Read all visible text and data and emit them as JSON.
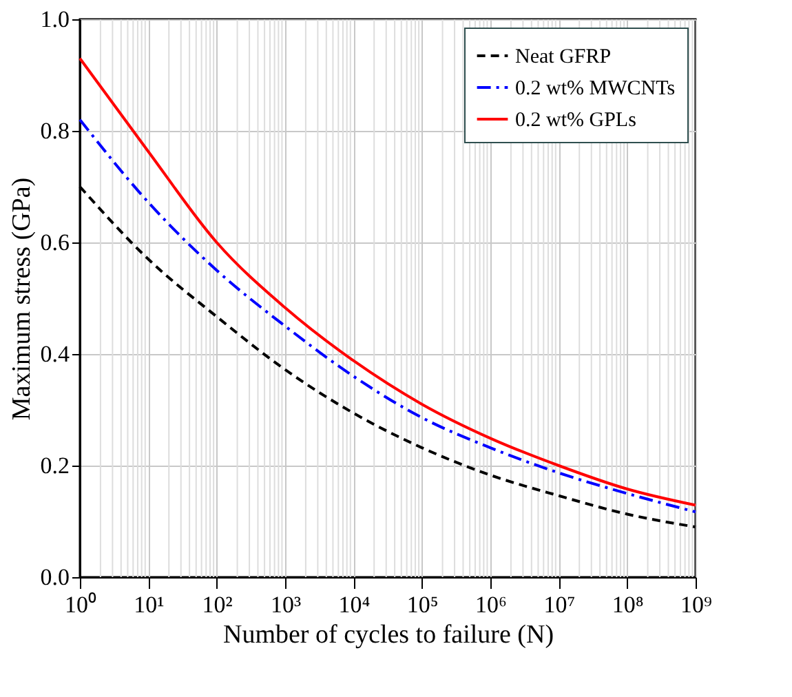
{
  "chart_data": {
    "type": "line",
    "xlabel": "Number of cycles to failure (N)",
    "ylabel": "Maximum stress (GPa)",
    "x": [
      1,
      10,
      100,
      1000,
      10000,
      100000,
      1000000,
      10000000,
      100000000,
      1000000000
    ],
    "series": [
      {
        "name": "Neat GFRP",
        "color": "#000000",
        "line_style": "dashed",
        "values": [
          0.7,
          0.57,
          0.467,
          0.372,
          0.294,
          0.232,
          0.183,
          0.146,
          0.113,
          0.09
        ]
      },
      {
        "name": "0.2 wt% MWCNTs",
        "color": "#0000ff",
        "line_style": "dashdot",
        "values": [
          0.82,
          0.672,
          0.55,
          0.45,
          0.36,
          0.286,
          0.232,
          0.187,
          0.15,
          0.117
        ]
      },
      {
        "name": "0.2 wt% GPLs",
        "color": "#ff0000",
        "line_style": "solid",
        "values": [
          0.93,
          0.763,
          0.6,
          0.483,
          0.388,
          0.31,
          0.249,
          0.2,
          0.158,
          0.129
        ]
      }
    ],
    "log": "x",
    "xlim": [
      1,
      1000000000
    ],
    "xticks": [
      {
        "value": 1,
        "label": "10⁰"
      },
      {
        "value": 10,
        "label": "10¹"
      },
      {
        "value": 100,
        "label": "10²"
      },
      {
        "value": 1000,
        "label": "10³"
      },
      {
        "value": 10000,
        "label": "10⁴"
      },
      {
        "value": 100000,
        "label": "10⁵"
      },
      {
        "value": 1000000,
        "label": "10⁶"
      },
      {
        "value": 10000000,
        "label": "10⁷"
      },
      {
        "value": 100000000,
        "label": "10⁸"
      },
      {
        "value": 1000000000,
        "label": "10⁹"
      }
    ],
    "ylim": [
      0,
      1
    ],
    "yticks": [
      {
        "value": 0,
        "label": "0.0"
      },
      {
        "value": 0.2,
        "label": "0.2"
      },
      {
        "value": 0.4,
        "label": "0.4"
      },
      {
        "value": 0.6,
        "label": "0.6"
      },
      {
        "value": 0.8,
        "label": "0.8"
      },
      {
        "value": 1,
        "label": "1.0"
      }
    ],
    "grid": true,
    "legend": "top right",
    "marker": "none"
  }
}
